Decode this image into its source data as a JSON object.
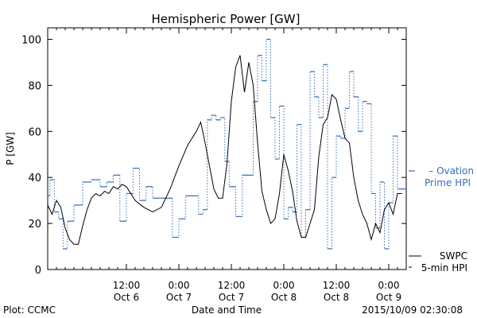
{
  "chart_data": {
    "type": "line",
    "title": "Hemispheric Power [GW]",
    "xlabel": "Date and Time",
    "ylabel": "P [GW]",
    "ylim": [
      0,
      105
    ],
    "yticks": [
      0,
      20,
      40,
      60,
      80,
      100
    ],
    "xlim": [
      "2015-10-05 18:00",
      "2015-10-09 04:00"
    ],
    "xticks": [
      {
        "x": "2015-10-06 12:00",
        "time": "12:00",
        "date": "Oct 6"
      },
      {
        "x": "2015-10-07 00:00",
        "time": "0:00",
        "date": "Oct 7"
      },
      {
        "x": "2015-10-07 12:00",
        "time": "12:00",
        "date": "Oct 7"
      },
      {
        "x": "2015-10-08 00:00",
        "time": "0:00",
        "date": "Oct 8"
      },
      {
        "x": "2015-10-08 12:00",
        "time": "12:00",
        "date": "Oct 8"
      },
      {
        "x": "2015-10-09 00:00",
        "time": "0:00",
        "date": "Oct 9"
      }
    ],
    "grid": false,
    "legend_position": "right",
    "series": [
      {
        "name": "Ovation Prime HPI",
        "line1": "Ovation",
        "line2": "Prime HPI",
        "color": "#3a6fb8",
        "style": "dotted-step",
        "x": [
          "2015-10-05 18:00",
          "2015-10-05 18:30",
          "2015-10-05 19:30",
          "2015-10-05 20:30",
          "2015-10-05 21:30",
          "2015-10-05 22:30",
          "2015-10-06 00:00",
          "2015-10-06 02:00",
          "2015-10-06 04:00",
          "2015-10-06 06:00",
          "2015-10-06 07:30",
          "2015-10-06 09:00",
          "2015-10-06 10:30",
          "2015-10-06 12:00",
          "2015-10-06 13:30",
          "2015-10-06 15:00",
          "2015-10-06 16:30",
          "2015-10-06 18:00",
          "2015-10-06 19:30",
          "2015-10-06 21:00",
          "2015-10-06 22:30",
          "2015-10-07 00:00",
          "2015-10-07 01:30",
          "2015-10-07 03:00",
          "2015-10-07 04:30",
          "2015-10-07 05:30",
          "2015-10-07 06:30",
          "2015-10-07 07:30",
          "2015-10-07 08:30",
          "2015-10-07 09:30",
          "2015-10-07 10:30",
          "2015-10-07 11:30",
          "2015-10-07 13:00",
          "2015-10-07 14:30",
          "2015-10-07 16:00",
          "2015-10-07 17:00",
          "2015-10-07 18:00",
          "2015-10-07 19:00",
          "2015-10-07 20:00",
          "2015-10-07 21:00",
          "2015-10-07 22:00",
          "2015-10-07 23:00",
          "2015-10-08 00:00",
          "2015-10-08 01:00",
          "2015-10-08 02:00",
          "2015-10-08 03:00",
          "2015-10-08 04:00",
          "2015-10-08 05:00",
          "2015-10-08 06:00",
          "2015-10-08 07:00",
          "2015-10-08 08:00",
          "2015-10-08 09:00",
          "2015-10-08 10:00",
          "2015-10-08 11:00",
          "2015-10-08 12:00",
          "2015-10-08 13:00",
          "2015-10-08 14:00",
          "2015-10-08 15:00",
          "2015-10-08 16:00",
          "2015-10-08 17:00",
          "2015-10-08 18:00",
          "2015-10-08 19:00",
          "2015-10-08 20:00",
          "2015-10-08 21:00",
          "2015-10-08 22:00",
          "2015-10-08 23:00",
          "2015-10-09 00:00",
          "2015-10-09 01:00",
          "2015-10-09 02:00"
        ],
        "y": [
          32,
          39,
          25,
          22,
          9,
          21,
          28,
          38,
          39,
          36,
          38,
          41,
          21,
          33,
          44,
          30,
          36,
          31,
          31,
          31,
          14,
          22,
          32,
          32,
          24,
          26,
          65,
          67,
          65,
          66,
          47,
          36,
          23,
          41,
          41,
          73,
          93,
          82,
          100,
          66,
          48,
          71,
          22,
          27,
          25,
          63,
          14,
          26,
          86,
          75,
          66,
          89,
          9,
          40,
          58,
          57,
          70,
          86,
          75,
          60,
          73,
          72,
          33,
          18,
          38,
          9,
          29,
          58,
          35
        ]
      },
      {
        "name": "SWPC 5-min HPI",
        "line1": "SWPC",
        "line2": "5-min HPI",
        "color": "#000000",
        "style": "solid",
        "x": [
          "2015-10-05 18:00",
          "2015-10-05 19:00",
          "2015-10-05 20:00",
          "2015-10-05 21:00",
          "2015-10-05 22:00",
          "2015-10-05 23:00",
          "2015-10-06 00:00",
          "2015-10-06 01:00",
          "2015-10-06 02:00",
          "2015-10-06 03:00",
          "2015-10-06 04:00",
          "2015-10-06 05:00",
          "2015-10-06 06:00",
          "2015-10-06 07:00",
          "2015-10-06 08:00",
          "2015-10-06 09:00",
          "2015-10-06 10:00",
          "2015-10-06 11:00",
          "2015-10-06 12:00",
          "2015-10-06 14:00",
          "2015-10-06 16:00",
          "2015-10-06 18:00",
          "2015-10-06 20:00",
          "2015-10-06 22:00",
          "2015-10-07 00:00",
          "2015-10-07 02:00",
          "2015-10-07 04:00",
          "2015-10-07 05:00",
          "2015-10-07 06:00",
          "2015-10-07 07:00",
          "2015-10-07 08:00",
          "2015-10-07 09:00",
          "2015-10-07 10:00",
          "2015-10-07 11:00",
          "2015-10-07 12:00",
          "2015-10-07 13:00",
          "2015-10-07 14:00",
          "2015-10-07 15:00",
          "2015-10-07 16:00",
          "2015-10-07 17:00",
          "2015-10-07 18:00",
          "2015-10-07 19:00",
          "2015-10-07 20:00",
          "2015-10-07 21:00",
          "2015-10-07 22:00",
          "2015-10-07 23:00",
          "2015-10-08 00:00",
          "2015-10-08 01:00",
          "2015-10-08 02:00",
          "2015-10-08 03:00",
          "2015-10-08 04:00",
          "2015-10-08 05:00",
          "2015-10-08 06:00",
          "2015-10-08 07:00",
          "2015-10-08 08:00",
          "2015-10-08 09:00",
          "2015-10-08 10:00",
          "2015-10-08 11:00",
          "2015-10-08 12:00",
          "2015-10-08 13:00",
          "2015-10-08 14:00",
          "2015-10-08 15:00",
          "2015-10-08 16:00",
          "2015-10-08 17:00",
          "2015-10-08 18:00",
          "2015-10-08 19:00",
          "2015-10-08 20:00",
          "2015-10-08 21:00",
          "2015-10-08 22:00",
          "2015-10-08 23:00",
          "2015-10-09 00:00",
          "2015-10-09 01:00",
          "2015-10-09 02:00",
          "2015-10-09 03:00"
        ],
        "y": [
          28,
          24,
          30,
          27,
          18,
          13,
          11,
          11,
          19,
          26,
          31,
          33,
          32,
          34,
          33,
          36,
          35,
          37,
          36,
          30,
          27,
          25,
          27,
          35,
          45,
          54,
          60,
          64,
          55,
          45,
          35,
          31,
          31,
          46,
          73,
          88,
          93,
          77,
          90,
          80,
          55,
          34,
          26,
          20,
          22,
          33,
          50,
          43,
          34,
          21,
          14,
          14,
          20,
          26,
          49,
          63,
          66,
          76,
          74,
          65,
          57,
          55,
          40,
          30,
          24,
          20,
          13,
          20,
          16,
          26,
          29,
          24,
          33,
          33
        ]
      }
    ],
    "footer": {
      "left": "Plot: CCMC",
      "right": "2015/10/09 02:30:08"
    }
  }
}
